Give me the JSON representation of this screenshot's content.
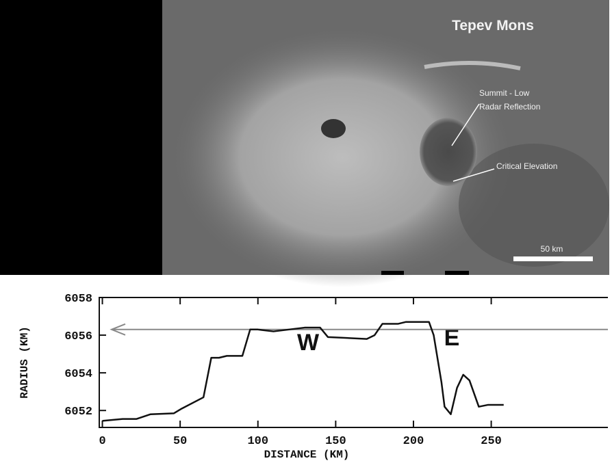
{
  "chart_data": {
    "type": "line",
    "image_labels": {
      "title": "Tepev Mons",
      "summit": [
        "Summit - Low",
        "Radar Reflection"
      ],
      "critical": "Critical Elevation",
      "scale": "50 km"
    },
    "annotations": [
      "W",
      "E"
    ],
    "x_label": "DISTANCE (KM)",
    "y_label": "RADIUS (KM)",
    "x": [
      0,
      13,
      22,
      31,
      46,
      51,
      65,
      70,
      75,
      80,
      90,
      95,
      100,
      110,
      130,
      140,
      145,
      170,
      175,
      180,
      190,
      195,
      210,
      213,
      218,
      220,
      224,
      228,
      232,
      236,
      242,
      248,
      258
    ],
    "values": [
      6051.45,
      6051.55,
      6051.55,
      6051.8,
      6051.85,
      6052.1,
      6052.7,
      6054.8,
      6054.8,
      6054.9,
      6054.9,
      6056.3,
      6056.3,
      6056.2,
      6056.4,
      6056.4,
      6055.9,
      6055.8,
      6056.0,
      6056.6,
      6056.6,
      6056.7,
      6056.7,
      6056.0,
      6053.5,
      6052.2,
      6051.8,
      6053.2,
      6053.9,
      6053.6,
      6052.2,
      6052.3,
      6052.3
    ],
    "color": "#111111",
    "reference_line": 6056.3,
    "xlim": [
      -2,
      325
    ],
    "ylim": [
      6051.1,
      6058
    ],
    "xticks": [
      0,
      50,
      100,
      150,
      200,
      250
    ],
    "yticks": [
      6052,
      6054,
      6056,
      6058
    ]
  }
}
